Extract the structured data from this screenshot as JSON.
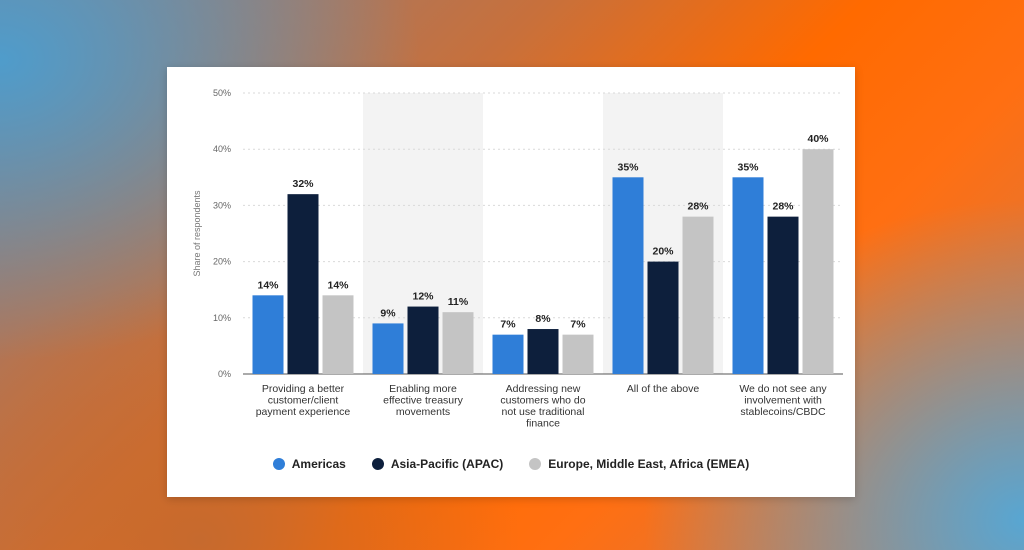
{
  "colors": {
    "americas": "#2f7ed8",
    "apac": "#0d1f3c",
    "emea": "#c4c4c4"
  },
  "chart_data": {
    "type": "bar",
    "ylabel": "Share of respondents",
    "ylim": [
      0,
      50
    ],
    "yticks": [
      0,
      10,
      20,
      30,
      40,
      50
    ],
    "ytick_labels": [
      "0%",
      "10%",
      "20%",
      "30%",
      "40%",
      "50%"
    ],
    "grid": true,
    "legend": "bottom-center",
    "categories": [
      [
        "Providing a better",
        "customer/client",
        "payment experience"
      ],
      [
        "Enabling more",
        "effective treasury",
        "movements"
      ],
      [
        "Addressing new",
        "customers who do",
        "not use traditional",
        "finance"
      ],
      [
        "All of the above"
      ],
      [
        "We do not see any",
        "involvement with",
        "stablecoins/CBDC"
      ]
    ],
    "series": [
      {
        "name": "Americas",
        "values": [
          14,
          9,
          7,
          35,
          35
        ],
        "labels": [
          "14%",
          "9%",
          "7%",
          "35%",
          "35%"
        ]
      },
      {
        "name": "Asia-Pacific (APAC)",
        "values": [
          32,
          12,
          8,
          20,
          28
        ],
        "labels": [
          "32%",
          "12%",
          "8%",
          "20%",
          "28%"
        ]
      },
      {
        "name": "Europe, Middle East, Africa (EMEA)",
        "values": [
          14,
          11,
          7,
          28,
          40
        ],
        "labels": [
          "14%",
          "11%",
          "7%",
          "28%",
          "40%"
        ]
      }
    ]
  }
}
